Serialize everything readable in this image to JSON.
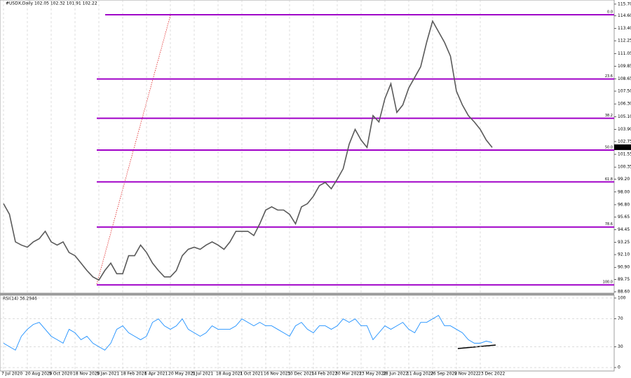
{
  "header": "#USDX,Daily  102.05 102.32 101.91 102.22",
  "chart_data": [
    {
      "type": "line",
      "categories": [
        "7 Jul 2020",
        null,
        null,
        null,
        "20 Aug 2020",
        null,
        null,
        null,
        "5 Oct 2020",
        null,
        null,
        null,
        "18 Nov 2020",
        null,
        null,
        null,
        "5 Jan 2021",
        null,
        null,
        null,
        "18 Feb 2021",
        null,
        null,
        null,
        "6 Apr 2021",
        null,
        null,
        null,
        "20 May 2021",
        null,
        null,
        null,
        "5 Jul 2021",
        null,
        null,
        null,
        "18 Aug 2021",
        null,
        null,
        null,
        "1 Oct 2021",
        null,
        null,
        null,
        "16 Nov 2021",
        null,
        null,
        null,
        "30 Dec 2021",
        null,
        null,
        null,
        "14 Feb 2022",
        null,
        null,
        null,
        "30 Mar 2022",
        null,
        null,
        null,
        "13 May 2022",
        null,
        null,
        null,
        "28 Jun 2022",
        null,
        null,
        null,
        "11 Aug 2022",
        null,
        null,
        null,
        "26 Sep 2022",
        null,
        null,
        null,
        "9 Nov 2022",
        null,
        null,
        null,
        "23 Dec 2022",
        null,
        null
      ],
      "series": [
        {
          "color": "#5a5a5a",
          "values": [
            96.9,
            95.9,
            93.3,
            93.0,
            92.8,
            93.3,
            93.6,
            94.3,
            93.3,
            93.0,
            93.3,
            92.3,
            92.0,
            91.3,
            90.6,
            90.0,
            89.7,
            90.6,
            91.3,
            90.3,
            90.3,
            92.0,
            92.0,
            93.0,
            92.3,
            91.3,
            90.6,
            90.0,
            90.0,
            90.6,
            92.0,
            92.6,
            92.8,
            92.6,
            93.0,
            93.3,
            93.0,
            92.6,
            93.3,
            94.3,
            94.3,
            94.3,
            93.9,
            95.0,
            96.3,
            96.6,
            96.3,
            96.3,
            95.9,
            95.0,
            96.6,
            96.9,
            97.6,
            98.6,
            98.9,
            98.3,
            99.2,
            100.2,
            102.5,
            103.9,
            102.9,
            102.2,
            105.2,
            104.6,
            106.8,
            108.2,
            105.5,
            106.2,
            107.8,
            108.8,
            109.8,
            112.1,
            114.1,
            113.1,
            112.1,
            110.8,
            107.5,
            106.2,
            105.2,
            104.6,
            103.9,
            102.9,
            102.2
          ]
        }
      ],
      "ylim": [
        88.47,
        116.09
      ],
      "yticks": [
        {
          "value": 115.7,
          "label": "115.70"
        },
        {
          "value": 114.6,
          "label": "114.60"
        },
        {
          "value": 113.4,
          "label": "113.40"
        },
        {
          "value": 112.25,
          "label": "112.25"
        },
        {
          "value": 111.05,
          "label": "111.05"
        },
        {
          "value": 109.85,
          "label": "109.85"
        },
        {
          "value": 108.65,
          "label": "108.65"
        },
        {
          "value": 107.5,
          "label": "107.50"
        },
        {
          "value": 106.3,
          "label": "106.30"
        },
        {
          "value": 105.1,
          "label": "105.10"
        },
        {
          "value": 103.9,
          "label": "103.90"
        },
        {
          "value": 102.75,
          "label": "102.75"
        },
        {
          "value": 101.55,
          "label": "101.55"
        },
        {
          "value": 100.35,
          "label": "100.35"
        },
        {
          "value": 99.2,
          "label": "99.20"
        },
        {
          "value": 98.0,
          "label": "98.00"
        },
        {
          "value": 96.8,
          "label": "96.80"
        },
        {
          "value": 95.65,
          "label": "95.65"
        },
        {
          "value": 94.45,
          "label": "94.45"
        },
        {
          "value": 93.25,
          "label": "93.25"
        },
        {
          "value": 92.1,
          "label": "92.10"
        },
        {
          "value": 90.9,
          "label": "90.90"
        },
        {
          "value": 89.75,
          "label": "89.75"
        },
        {
          "value": 88.6,
          "label": "88.60"
        }
      ],
      "levels": [
        {
          "label": "0.0",
          "value": 114.7
        },
        {
          "label": "23.6",
          "value": 108.65
        },
        {
          "label": "38.2",
          "value": 104.95
        },
        {
          "label": "50.0",
          "value": 101.95
        },
        {
          "label": "61.8",
          "value": 98.95
        },
        {
          "label": "78.6",
          "value": 94.7
        },
        {
          "label": "100.0",
          "value": 89.25
        }
      ],
      "last": 102.22,
      "grid": true,
      "level_color": "#a000c8"
    },
    {
      "type": "line",
      "title": "RSI(14) 36.2946",
      "series": [
        {
          "color": "#1e90ff",
          "values": [
            35,
            30,
            25,
            45,
            55,
            62,
            65,
            55,
            45,
            40,
            35,
            55,
            50,
            40,
            45,
            35,
            30,
            25,
            35,
            55,
            60,
            50,
            45,
            40,
            45,
            65,
            70,
            60,
            55,
            60,
            70,
            55,
            50,
            45,
            50,
            60,
            55,
            55,
            55,
            60,
            70,
            65,
            60,
            65,
            60,
            60,
            55,
            50,
            45,
            60,
            65,
            55,
            50,
            60,
            60,
            55,
            60,
            70,
            65,
            70,
            60,
            60,
            40,
            50,
            60,
            55,
            60,
            65,
            55,
            50,
            65,
            65,
            70,
            75,
            60,
            60,
            55,
            50,
            40,
            35,
            35,
            38,
            36
          ]
        }
      ],
      "ylim": [
        -5,
        102
      ],
      "yticks": [
        100,
        70,
        30,
        0
      ],
      "grid": true
    }
  ]
}
